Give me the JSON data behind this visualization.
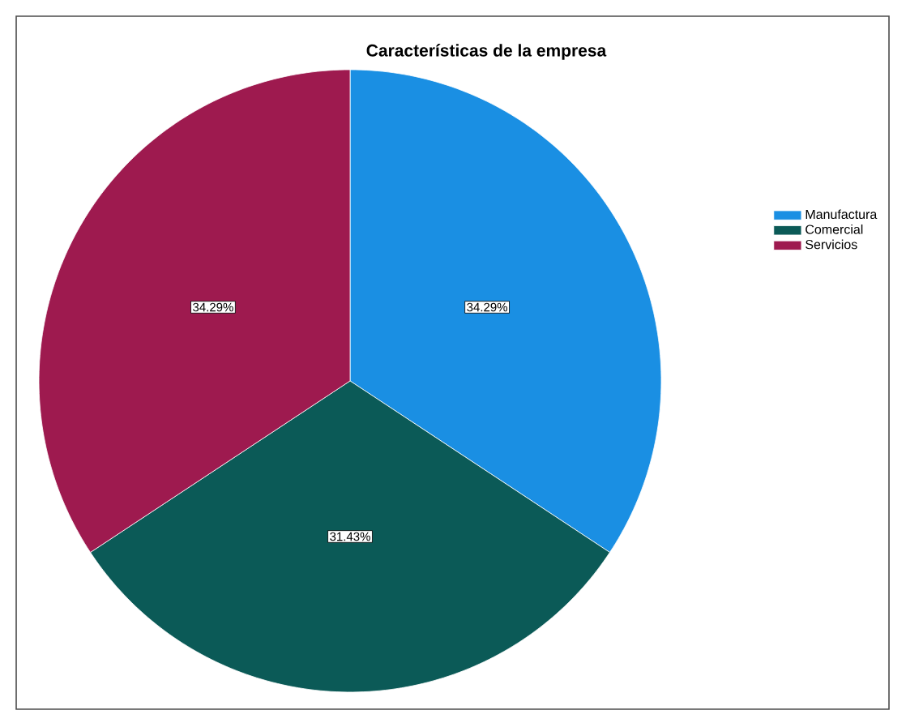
{
  "chart_data": {
    "type": "pie",
    "title": "Características de la empresa",
    "categories": [
      "Manufactura",
      "Comercial",
      "Servicios"
    ],
    "values": [
      34.29,
      31.43,
      34.29
    ],
    "colors": [
      "#1a8fe3",
      "#0b5a57",
      "#9e1a4f"
    ],
    "value_labels": [
      "34.29%",
      "31.43%",
      "34.29%"
    ],
    "legend": "right"
  }
}
